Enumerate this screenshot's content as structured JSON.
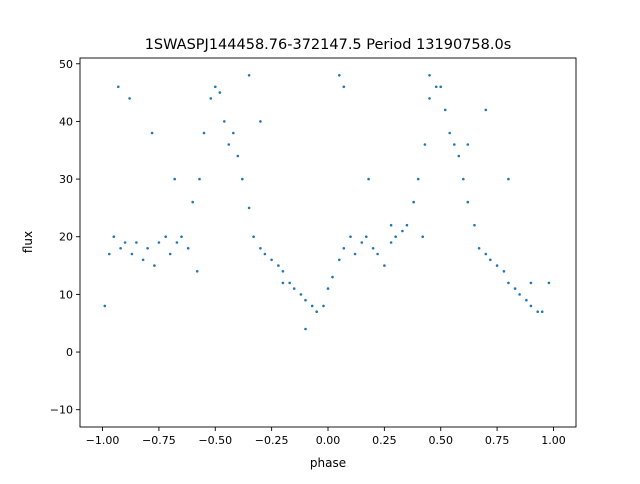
{
  "chart_data": {
    "type": "scatter",
    "title": "1SWASPJ144458.76-372147.5 Period 13190758.0s",
    "xlabel": "phase",
    "ylabel": "flux",
    "xlim": [
      -1.1,
      1.1
    ],
    "ylim": [
      -13,
      51
    ],
    "xticks": [
      -1.0,
      -0.75,
      -0.5,
      -0.25,
      0.0,
      0.25,
      0.5,
      0.75,
      1.0
    ],
    "xtick_labels": [
      "−1.00",
      "−0.75",
      "−0.50",
      "−0.25",
      "0.00",
      "0.25",
      "0.50",
      "0.75",
      "1.00"
    ],
    "yticks": [
      -10,
      0,
      10,
      20,
      30,
      40,
      50
    ],
    "ytick_labels": [
      "−10",
      "0",
      "10",
      "20",
      "30",
      "40",
      "50"
    ],
    "grid": false,
    "legend": "none",
    "marker_color": "#1f77b4",
    "series": [
      {
        "x": [
          -0.99,
          -0.97,
          -0.95,
          -0.92,
          -0.9,
          -0.87,
          -0.85,
          -0.82,
          -0.8,
          -0.77,
          -0.75,
          -0.72,
          -0.7,
          -0.67,
          -0.65,
          -0.62,
          -0.6,
          -0.57,
          -0.55,
          -0.52,
          -0.5,
          -0.48,
          -0.46,
          -0.44,
          -0.42,
          -0.4,
          -0.38,
          -0.35,
          -0.33,
          -0.3,
          -0.28,
          -0.25,
          -0.22,
          -0.2,
          -0.17,
          -0.15,
          -0.12,
          -0.1,
          -0.07,
          -0.05,
          -0.02,
          0.0,
          0.02,
          0.05,
          0.07,
          0.1,
          0.12,
          0.15,
          0.17,
          0.2,
          0.22,
          0.25,
          0.28,
          0.3,
          0.33,
          0.35,
          0.38,
          0.4,
          0.43,
          0.45,
          0.48,
          0.5,
          0.52,
          0.54,
          0.56,
          0.58,
          0.6,
          0.62,
          0.65,
          0.67,
          0.7,
          0.72,
          0.75,
          0.78,
          0.8,
          0.83,
          0.85,
          0.88,
          0.9,
          0.93,
          0.95,
          0.98,
          -0.93,
          -0.88,
          -0.78,
          -0.68,
          -0.58,
          -0.35,
          -0.3,
          -0.2,
          -0.1,
          0.05,
          0.07,
          0.18,
          0.28,
          0.42,
          0.45,
          0.62,
          0.7,
          0.8,
          0.9
        ],
        "y": [
          8,
          17,
          20,
          18,
          19,
          17,
          19,
          16,
          18,
          15,
          19,
          20,
          17,
          19,
          20,
          18,
          26,
          30,
          38,
          44,
          46,
          45,
          40,
          36,
          38,
          34,
          30,
          25,
          20,
          18,
          17,
          16,
          15,
          14,
          12,
          11,
          10,
          9,
          8,
          7,
          8,
          11,
          13,
          16,
          18,
          20,
          17,
          19,
          20,
          18,
          17,
          15,
          19,
          20,
          21,
          22,
          26,
          30,
          36,
          44,
          46,
          46,
          42,
          38,
          36,
          34,
          30,
          26,
          22,
          18,
          17,
          16,
          15,
          14,
          12,
          11,
          10,
          9,
          8,
          7,
          7,
          12,
          46,
          44,
          38,
          30,
          14,
          48,
          40,
          12,
          4,
          48,
          46,
          30,
          22,
          20,
          48,
          36,
          42,
          30,
          12
        ]
      }
    ]
  }
}
